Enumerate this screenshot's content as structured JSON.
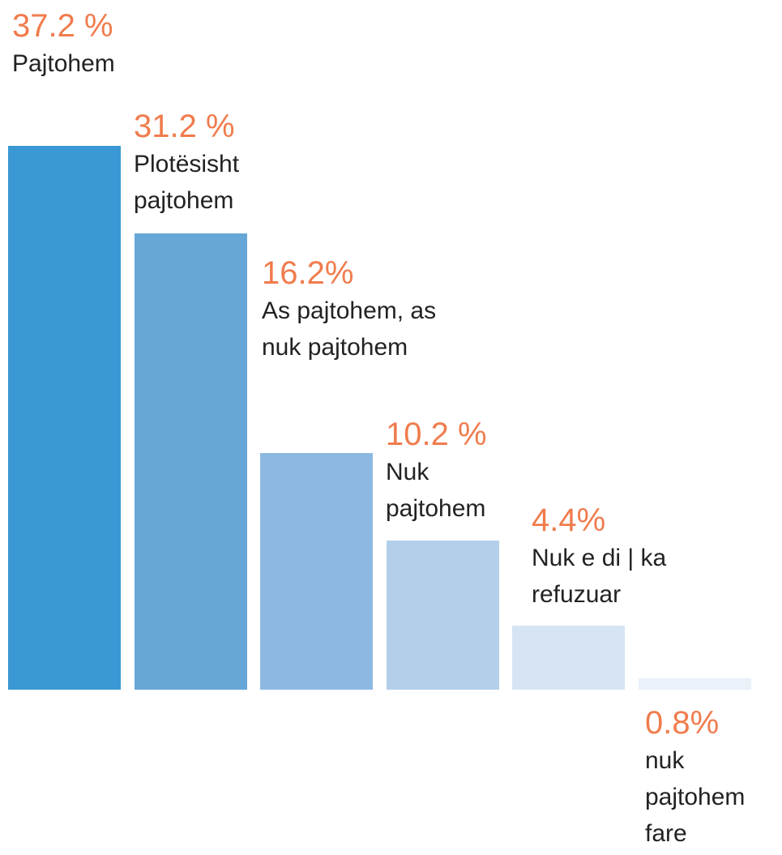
{
  "chart_data": {
    "type": "bar",
    "categories": [
      "Pajtohem",
      "Plotësisht pajtohem",
      "As pajtohem, as nuk pajtohem",
      "Nuk pajtohem",
      "Nuk e di | ka refuzuar",
      "nuk pajtohem fare"
    ],
    "values": [
      37.2,
      31.2,
      16.2,
      10.2,
      4.4,
      0.8
    ],
    "value_labels": [
      "37.2 %",
      "31.2 %",
      "16.2%",
      "10.2 %",
      "4.4%",
      "0.8%"
    ],
    "colors": [
      "#3a98d4",
      "#66a7d8",
      "#8db8e2",
      "#b3cfea",
      "#d6e4f4",
      "#ebf1f9"
    ]
  }
}
